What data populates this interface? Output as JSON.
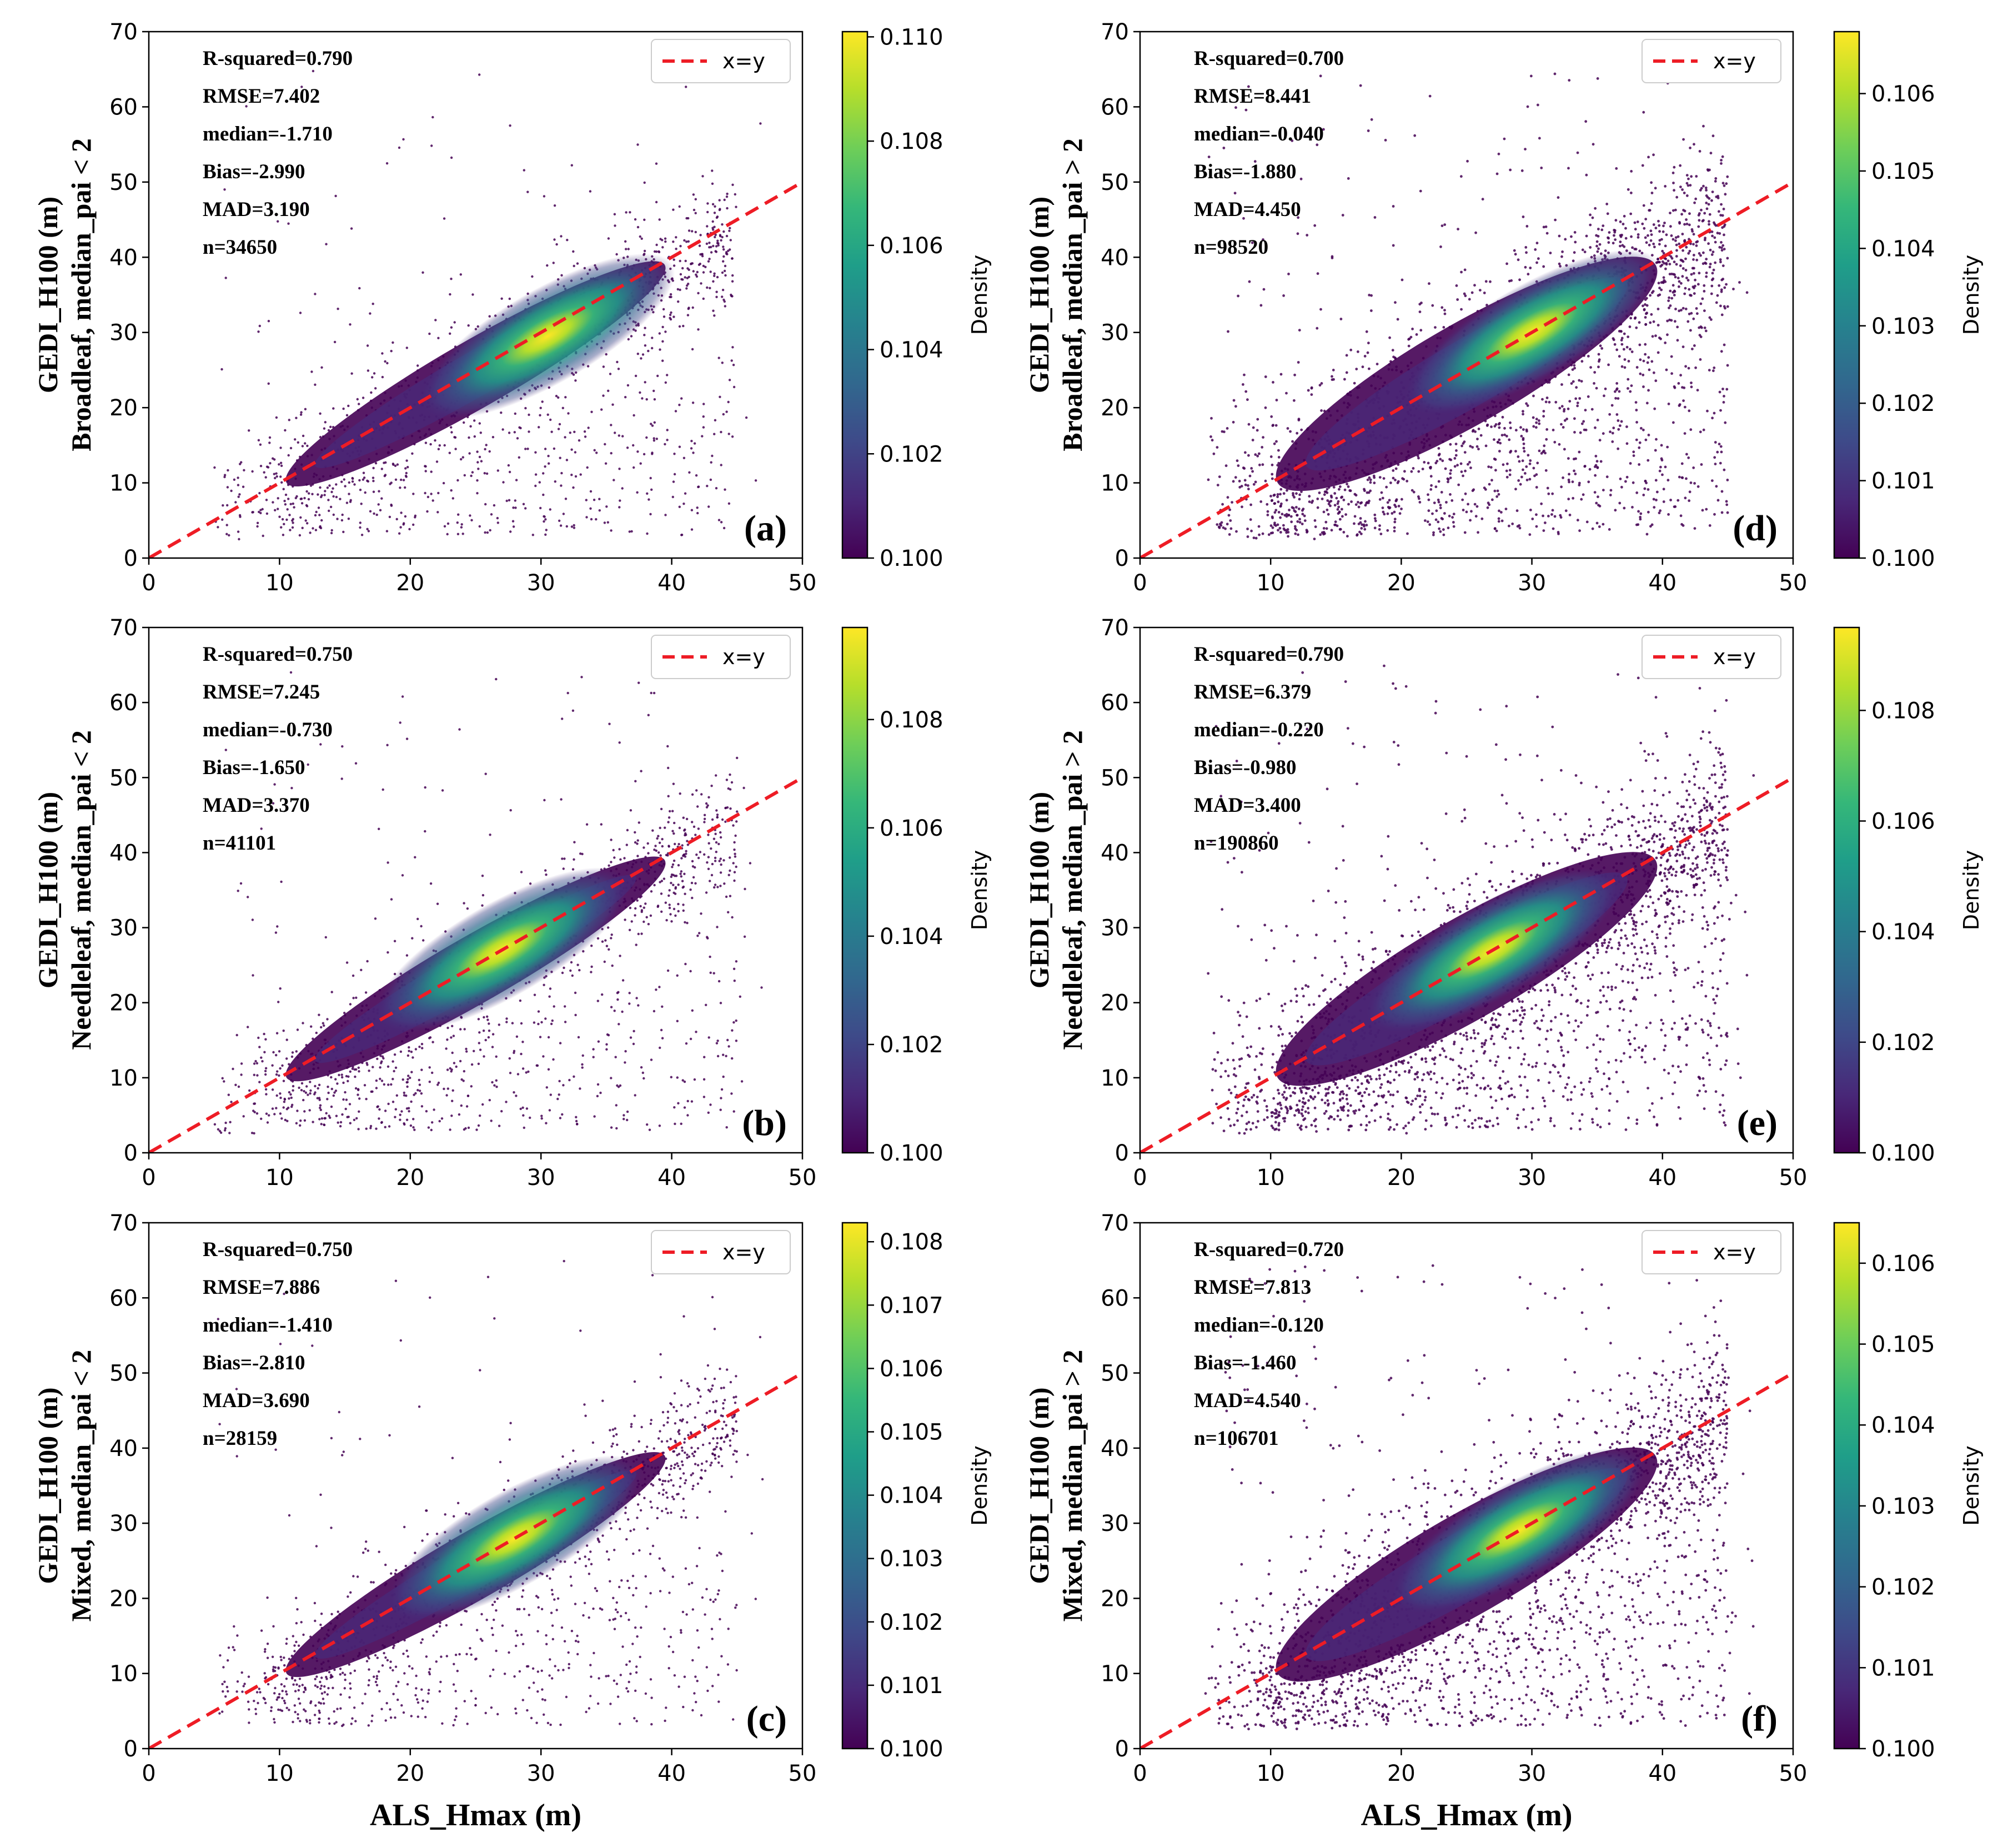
{
  "colors": {
    "identity_line": "#ee1c25",
    "low_density": "#440154",
    "viridis": [
      "#440154",
      "#482878",
      "#3e4a89",
      "#31688e",
      "#26828e",
      "#1f9e89",
      "#35b779",
      "#6ece58",
      "#b5de2b",
      "#fde725"
    ]
  },
  "chart_data": [
    {
      "id": "a",
      "type": "scatter",
      "panel_label": "(a)",
      "xlabel": "",
      "ylabel_line1": "GEDI_H100 (m)",
      "ylabel_line2": "Broadleaf, median_pai < 2",
      "xlim": [
        0,
        50
      ],
      "ylim": [
        0,
        70
      ],
      "xticks": [
        0,
        10,
        20,
        30,
        40,
        50
      ],
      "yticks": [
        0,
        10,
        20,
        30,
        40,
        50,
        60,
        70
      ],
      "legend": "x=y",
      "stats": [
        "R-squared=0.790",
        "RMSE=7.402",
        "median=-1.710",
        "Bias=-2.990",
        "MAD=3.190",
        "n=34650"
      ],
      "density_center": [
        30.5,
        29.5
      ],
      "colorbar": {
        "title": "Density",
        "min": 0.1,
        "max": 0.1101,
        "ticks": [
          "0.100",
          "0.102",
          "0.104",
          "0.106",
          "0.108",
          "0.110"
        ],
        "tick_values": [
          0.1,
          0.102,
          0.104,
          0.106,
          0.108,
          0.11
        ]
      }
    },
    {
      "id": "d",
      "type": "scatter",
      "panel_label": "(d)",
      "xlabel": "",
      "ylabel_line1": "GEDI_H100 (m)",
      "ylabel_line2": "Broadleaf, median_pai > 2",
      "xlim": [
        0,
        50
      ],
      "ylim": [
        0,
        70
      ],
      "xticks": [
        0,
        10,
        20,
        30,
        40,
        50
      ],
      "yticks": [
        0,
        10,
        20,
        30,
        40,
        50,
        60,
        70
      ],
      "legend": "x=y",
      "stats": [
        "R-squared=0.700",
        "RMSE=8.441",
        "median=-0.040",
        "Bias=-1.880",
        "MAD=4.450",
        "n=98520"
      ],
      "density_center": [
        30,
        30
      ],
      "colorbar": {
        "title": "Density",
        "min": 0.1,
        "max": 0.1068,
        "ticks": [
          "0.100",
          "0.101",
          "0.102",
          "0.103",
          "0.104",
          "0.105",
          "0.106"
        ],
        "tick_values": [
          0.1,
          0.101,
          0.102,
          0.103,
          0.104,
          0.105,
          0.106
        ]
      }
    },
    {
      "id": "b",
      "type": "scatter",
      "panel_label": "(b)",
      "xlabel": "",
      "ylabel_line1": "GEDI_H100 (m)",
      "ylabel_line2": "Needleleaf, median_pai < 2",
      "xlim": [
        0,
        50
      ],
      "ylim": [
        0,
        70
      ],
      "xticks": [
        0,
        10,
        20,
        30,
        40,
        50
      ],
      "yticks": [
        0,
        10,
        20,
        30,
        40,
        50,
        60,
        70
      ],
      "legend": "x=y",
      "stats": [
        "R-squared=0.750",
        "RMSE=7.245",
        "median=-0.730",
        "Bias=-1.650",
        "MAD=3.370",
        "n=41101"
      ],
      "density_center": [
        27,
        27
      ],
      "colorbar": {
        "title": "Density",
        "min": 0.1,
        "max": 0.1097,
        "ticks": [
          "0.100",
          "0.102",
          "0.104",
          "0.106",
          "0.108"
        ],
        "tick_values": [
          0.1,
          0.102,
          0.104,
          0.106,
          0.108
        ]
      }
    },
    {
      "id": "e",
      "type": "scatter",
      "panel_label": "(e)",
      "xlabel": "",
      "ylabel_line1": "GEDI_H100 (m)",
      "ylabel_line2": "Needleleaf, median_pai > 2",
      "xlim": [
        0,
        50
      ],
      "ylim": [
        0,
        70
      ],
      "xticks": [
        0,
        10,
        20,
        30,
        40,
        50
      ],
      "yticks": [
        0,
        10,
        20,
        30,
        40,
        50,
        60,
        70
      ],
      "legend": "x=y",
      "stats": [
        "R-squared=0.790",
        "RMSE=6.379",
        "median=-0.220",
        "Bias=-0.980",
        "MAD=3.400",
        "n=190860"
      ],
      "density_center": [
        27,
        27
      ],
      "colorbar": {
        "title": "Density",
        "min": 0.1,
        "max": 0.1095,
        "ticks": [
          "0.100",
          "0.102",
          "0.104",
          "0.106",
          "0.108"
        ],
        "tick_values": [
          0.1,
          0.102,
          0.104,
          0.106,
          0.108
        ]
      }
    },
    {
      "id": "c",
      "type": "scatter",
      "panel_label": "(c)",
      "xlabel": "ALS_Hmax (m)",
      "ylabel_line1": "GEDI_H100 (m)",
      "ylabel_line2": "Mixed, median_pai < 2",
      "xlim": [
        0,
        50
      ],
      "ylim": [
        0,
        70
      ],
      "xticks": [
        0,
        10,
        20,
        30,
        40,
        50
      ],
      "yticks": [
        0,
        10,
        20,
        30,
        40,
        50,
        60,
        70
      ],
      "legend": "x=y",
      "stats": [
        "R-squared=0.750",
        "RMSE=7.886",
        "median=-1.410",
        "Bias=-2.810",
        "MAD=3.690",
        "n=28159"
      ],
      "density_center": [
        28,
        28
      ],
      "colorbar": {
        "title": "Density",
        "min": 0.1,
        "max": 0.1083,
        "ticks": [
          "0.100",
          "0.101",
          "0.102",
          "0.103",
          "0.104",
          "0.105",
          "0.106",
          "0.107",
          "0.108"
        ],
        "tick_values": [
          0.1,
          0.101,
          0.102,
          0.103,
          0.104,
          0.105,
          0.106,
          0.107,
          0.108
        ]
      }
    },
    {
      "id": "f",
      "type": "scatter",
      "panel_label": "(f)",
      "xlabel": "ALS_Hmax (m)",
      "ylabel_line1": "GEDI_H100 (m)",
      "ylabel_line2": "Mixed, median_pai > 2",
      "xlim": [
        0,
        50
      ],
      "ylim": [
        0,
        70
      ],
      "xticks": [
        0,
        10,
        20,
        30,
        40,
        50
      ],
      "yticks": [
        0,
        10,
        20,
        30,
        40,
        50,
        60,
        70
      ],
      "legend": "x=y",
      "stats": [
        "R-squared=0.720",
        "RMSE=7.813",
        "median=-0.120",
        "Bias=-1.460",
        "MAD=4.540",
        "n=106701"
      ],
      "density_center": [
        29,
        29
      ],
      "colorbar": {
        "title": "Density",
        "min": 0.1,
        "max": 0.1065,
        "ticks": [
          "0.100",
          "0.101",
          "0.102",
          "0.103",
          "0.104",
          "0.105",
          "0.106"
        ],
        "tick_values": [
          0.1,
          0.101,
          0.102,
          0.103,
          0.104,
          0.105,
          0.106
        ]
      }
    }
  ]
}
